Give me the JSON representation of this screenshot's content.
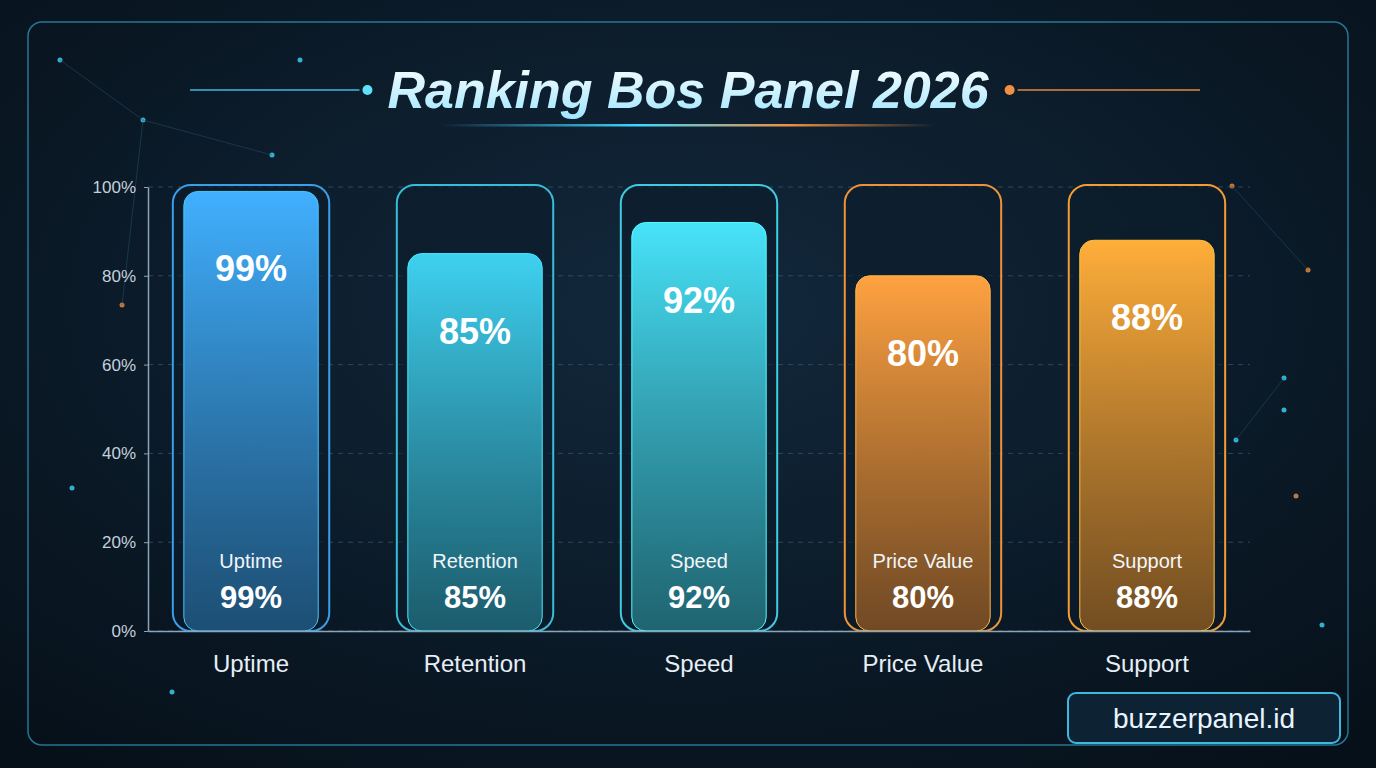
{
  "chart_data": {
    "type": "bar",
    "title": "Ranking Bos Panel 2026",
    "categories": [
      "Uptime",
      "Retention",
      "Speed",
      "Price Value",
      "Support"
    ],
    "values": [
      99,
      85,
      92,
      80,
      88
    ],
    "value_labels": [
      "99%",
      "85%",
      "92%",
      "80%",
      "88%"
    ],
    "colors": [
      "#3a9ee8",
      "#38bcd8",
      "#40cce0",
      "#f0923a",
      "#f59c34"
    ],
    "ylim": [
      0,
      100
    ],
    "yticks": [
      {
        "value": 0,
        "label": "0%"
      },
      {
        "value": 20,
        "label": "20%"
      },
      {
        "value": 40,
        "label": "40%"
      },
      {
        "value": 60,
        "label": "60%"
      },
      {
        "value": 80,
        "label": "80%"
      },
      {
        "value": 100,
        "label": "100%"
      }
    ],
    "grid": true,
    "data_labels": true,
    "annotations": [
      "buzzerpanel.id"
    ]
  }
}
